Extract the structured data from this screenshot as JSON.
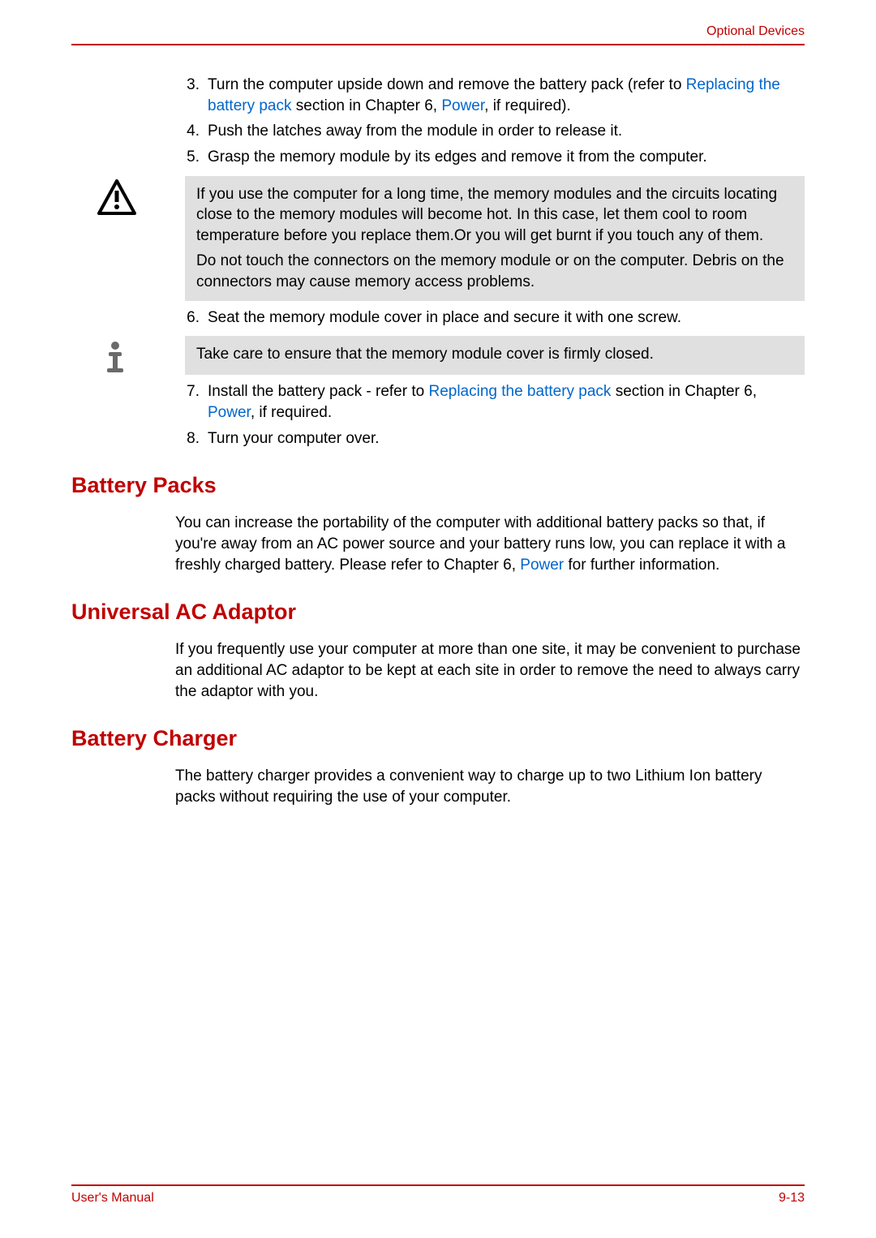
{
  "header": {
    "right": "Optional Devices"
  },
  "colors": {
    "accent": "#c00000",
    "link": "#0066cc",
    "text": "#000000",
    "callout_bg": "#e0e0e0",
    "page_bg": "#ffffff"
  },
  "typography": {
    "body_fontsize_pt": 14,
    "h2_fontsize_pt": 20,
    "footer_fontsize_pt": 12
  },
  "steps_a": [
    {
      "num": "3.",
      "segments": [
        {
          "t": "Turn the computer upside down and remove the battery pack (refer to "
        },
        {
          "t": "Replacing the battery pack",
          "link": true
        },
        {
          "t": " section in Chapter 6, "
        },
        {
          "t": "Power",
          "link": true
        },
        {
          "t": ", if required)."
        }
      ]
    },
    {
      "num": "4.",
      "segments": [
        {
          "t": "Push the latches away from the module in order to release it."
        }
      ]
    },
    {
      "num": "5.",
      "segments": [
        {
          "t": "Grasp the memory module by its edges and remove it from the computer."
        }
      ]
    }
  ],
  "warning": {
    "p1": "If you use the computer for a long time, the memory modules and the circuits locating close to the memory modules will become hot. In this case, let them cool to room temperature before you replace them.Or you will get burnt if you touch any of them.",
    "p2": "Do not touch the connectors on the memory module or on the computer. Debris on the connectors may cause memory access problems."
  },
  "steps_b": [
    {
      "num": "6.",
      "segments": [
        {
          "t": "Seat the memory module cover in place and secure it with one screw."
        }
      ]
    }
  ],
  "info": {
    "p1": "Take care to ensure that the memory module cover is firmly closed."
  },
  "steps_c": [
    {
      "num": "7.",
      "segments": [
        {
          "t": "Install the battery pack - refer to "
        },
        {
          "t": "Replacing the battery pack",
          "link": true
        },
        {
          "t": " section in Chapter 6, "
        },
        {
          "t": "Power",
          "link": true
        },
        {
          "t": ", if required."
        }
      ]
    },
    {
      "num": "8.",
      "segments": [
        {
          "t": "Turn your computer over."
        }
      ]
    }
  ],
  "sections": {
    "battery_packs": {
      "title": "Battery Packs",
      "body": [
        {
          "t": "You can increase the portability of the computer with additional battery packs so that, if you're away from an AC power source and your battery runs low, you can replace it with a freshly charged battery. Please refer to Chapter 6, "
        },
        {
          "t": "Power",
          "link": true
        },
        {
          "t": " for further information."
        }
      ]
    },
    "universal_ac": {
      "title": "Universal AC Adaptor",
      "body": [
        {
          "t": "If you frequently use your computer at more than one site, it may be convenient to purchase an additional AC adaptor to be kept at each site in order to remove the need to always carry the adaptor with you."
        }
      ]
    },
    "battery_charger": {
      "title": "Battery Charger",
      "body": [
        {
          "t": "The battery charger provides a convenient way to charge up to two Lithium Ion battery packs without requiring the use of your computer."
        }
      ]
    }
  },
  "footer": {
    "left": "User's Manual",
    "right": "9-13"
  }
}
